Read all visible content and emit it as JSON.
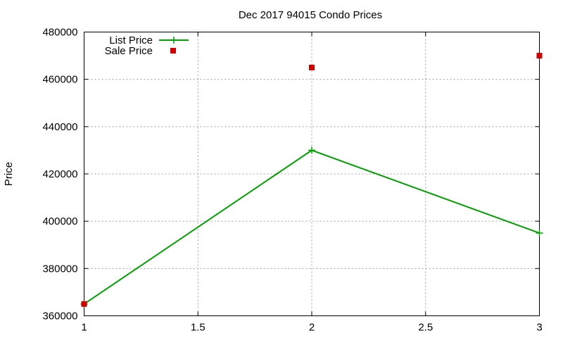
{
  "chart_data": {
    "type": "line",
    "title": "Dec 2017 94015 Condo Prices",
    "xlabel": "",
    "ylabel": "Price",
    "xlim": [
      1,
      3
    ],
    "ylim": [
      360000,
      480000
    ],
    "xticks": [
      "1",
      "1.5",
      "2",
      "2.5",
      "3"
    ],
    "yticks": [
      "360000",
      "380000",
      "400000",
      "420000",
      "440000",
      "460000",
      "480000"
    ],
    "grid": true,
    "legend_position": "top-left",
    "series": [
      {
        "name": "List Price",
        "style": "linespoints",
        "marker": "plus",
        "color": "#00a000",
        "x": [
          1,
          2,
          3
        ],
        "y": [
          365000,
          430000,
          395000
        ]
      },
      {
        "name": "Sale Price",
        "style": "points",
        "marker": "square",
        "color": "#cc0000",
        "x": [
          1,
          2,
          3
        ],
        "y": [
          365000,
          465000,
          470000
        ]
      }
    ]
  }
}
